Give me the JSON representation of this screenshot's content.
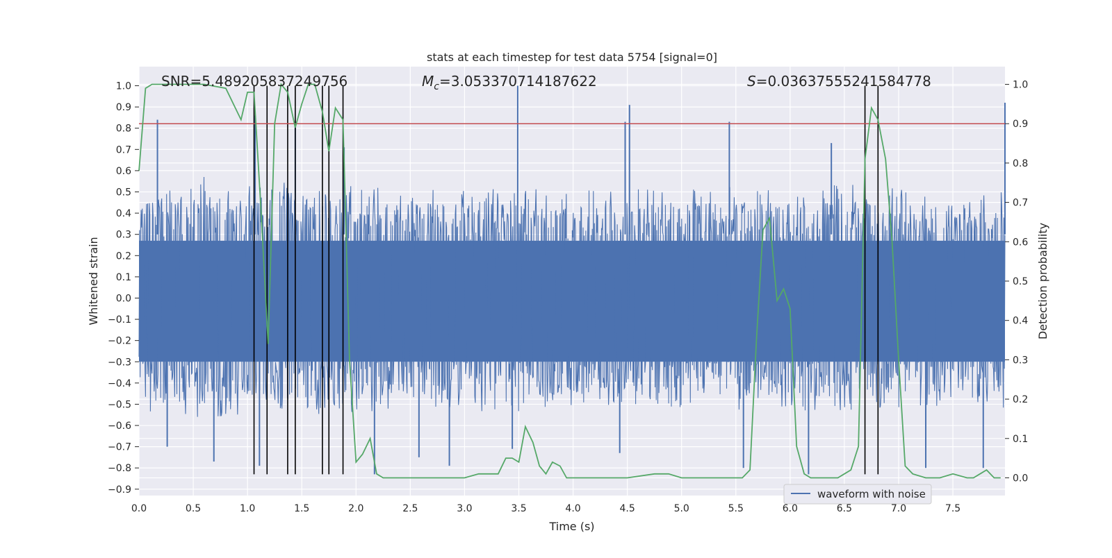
{
  "chart_data": {
    "type": "line",
    "title": "stats at each timestep for test data 5754 [signal=0]",
    "xlabel": "Time (s)",
    "ylabel_left": "Whitened strain",
    "ylabel_right": "Detection probability",
    "xlim": [
      0.0,
      7.98
    ],
    "ylim_left": [
      -0.93,
      1.09
    ],
    "ylim_right": [
      -0.045,
      1.045
    ],
    "x_ticks": [
      0.0,
      0.5,
      1.0,
      1.5,
      2.0,
      2.5,
      3.0,
      3.5,
      4.0,
      4.5,
      5.0,
      5.5,
      6.0,
      6.5,
      7.0,
      7.5
    ],
    "x_tick_labels": [
      "0.0",
      "0.5",
      "1.0",
      "1.5",
      "2.0",
      "2.5",
      "3.0",
      "3.5",
      "4.0",
      "4.5",
      "5.0",
      "5.5",
      "6.0",
      "6.5",
      "7.0",
      "7.5"
    ],
    "y_left_ticks": [
      1.0,
      0.9,
      0.8,
      0.7,
      0.6,
      0.5,
      0.4,
      0.3,
      0.2,
      0.1,
      0.0,
      -0.1,
      -0.2,
      -0.3,
      -0.4,
      -0.5,
      -0.6,
      -0.7,
      -0.8,
      -0.9
    ],
    "y_left_tick_labels": [
      "1.0",
      "0.9",
      "0.8",
      "0.7",
      "0.6",
      "0.5",
      "0.4",
      "0.3",
      "0.2",
      "0.1",
      "0.0",
      "−0.1",
      "−0.2",
      "−0.3",
      "−0.4",
      "−0.5",
      "−0.6",
      "−0.7",
      "−0.8",
      "−0.9"
    ],
    "y_right_ticks": [
      1.0,
      0.9,
      0.8,
      0.7,
      0.6,
      0.5,
      0.4,
      0.3,
      0.2,
      0.1,
      0.0
    ],
    "y_right_tick_labels": [
      "1.0",
      "0.9",
      "0.8",
      "0.7",
      "0.6",
      "0.5",
      "0.4",
      "0.3",
      "0.2",
      "0.1",
      "0.0"
    ],
    "grid": true,
    "legend": {
      "position": "lower-right",
      "entries": [
        "waveform with noise"
      ]
    },
    "annotations": {
      "snr": "SNR=5.489205837249756",
      "mc_symbol": "M",
      "mc_sub": "c",
      "mc_value": "=3.053370714187622",
      "s_symbol": "S",
      "s_value": "=0.03637555241584778"
    },
    "threshold_line": {
      "axis": "right",
      "value": 0.9
    },
    "detection_markers_x": [
      1.06,
      1.18,
      1.37,
      1.44,
      1.69,
      1.75,
      1.88,
      6.69,
      6.81
    ],
    "detection_marker_range": [
      -0.83,
      1.0
    ],
    "waveform_envelope": {
      "x": [
        0.0,
        0.5,
        1.0,
        1.5,
        2.0,
        2.5,
        3.0,
        3.5,
        4.0,
        4.5,
        5.0,
        5.5,
        6.0,
        6.5,
        7.0,
        7.5,
        7.98
      ],
      "typical_max": [
        0.45,
        0.5,
        0.48,
        0.47,
        0.46,
        0.45,
        0.44,
        0.46,
        0.44,
        0.45,
        0.44,
        0.46,
        0.44,
        0.47,
        0.45,
        0.44,
        0.44
      ],
      "typical_min": [
        -0.46,
        -0.5,
        -0.5,
        -0.49,
        -0.47,
        -0.45,
        -0.46,
        -0.47,
        -0.45,
        -0.46,
        -0.45,
        -0.46,
        -0.46,
        -0.48,
        -0.45,
        -0.45,
        -0.45
      ],
      "peaks": [
        {
          "x": 0.17,
          "y": 0.84
        },
        {
          "x": 1.07,
          "y": 0.86
        },
        {
          "x": 1.44,
          "y": 0.83
        },
        {
          "x": 1.89,
          "y": 0.71
        },
        {
          "x": 3.49,
          "y": 1.0
        },
        {
          "x": 4.52,
          "y": 0.91
        },
        {
          "x": 4.48,
          "y": 0.83
        },
        {
          "x": 5.44,
          "y": 0.83
        },
        {
          "x": 6.38,
          "y": 0.73
        },
        {
          "x": 7.98,
          "y": 0.92
        }
      ],
      "troughs": [
        {
          "x": 0.26,
          "y": -0.7
        },
        {
          "x": 0.69,
          "y": -0.77
        },
        {
          "x": 1.11,
          "y": -0.79
        },
        {
          "x": 2.17,
          "y": -0.83
        },
        {
          "x": 2.58,
          "y": -0.75
        },
        {
          "x": 2.86,
          "y": -0.79
        },
        {
          "x": 3.44,
          "y": -0.71
        },
        {
          "x": 4.43,
          "y": -0.73
        },
        {
          "x": 5.57,
          "y": -0.8
        },
        {
          "x": 6.17,
          "y": -0.83
        },
        {
          "x": 7.25,
          "y": -0.8
        },
        {
          "x": 7.78,
          "y": -0.8
        }
      ]
    },
    "series": [
      {
        "name": "waveform with noise",
        "axis": "left",
        "color": "#4c72b0",
        "description_type": "dense noisy waveform"
      },
      {
        "axis": "right",
        "color": "#55a868",
        "x": [
          0.0,
          0.06,
          0.12,
          0.2,
          0.4,
          0.6,
          0.8,
          0.94,
          1.0,
          1.06,
          1.12,
          1.19,
          1.25,
          1.31,
          1.37,
          1.44,
          1.5,
          1.56,
          1.62,
          1.69,
          1.75,
          1.81,
          1.88,
          1.94,
          2.0,
          2.06,
          2.13,
          2.19,
          2.25,
          2.5,
          2.75,
          3.0,
          3.13,
          3.19,
          3.31,
          3.38,
          3.44,
          3.5,
          3.56,
          3.63,
          3.69,
          3.75,
          3.81,
          3.88,
          3.94,
          4.0,
          4.06,
          4.25,
          4.5,
          4.75,
          4.81,
          4.88,
          5.0,
          5.25,
          5.5,
          5.56,
          5.63,
          5.69,
          5.75,
          5.81,
          5.88,
          5.94,
          6.0,
          6.06,
          6.13,
          6.19,
          6.31,
          6.44,
          6.5,
          6.56,
          6.63,
          6.69,
          6.75,
          6.81,
          6.88,
          6.94,
          7.0,
          7.06,
          7.13,
          7.25,
          7.38,
          7.5,
          7.63,
          7.69,
          7.75,
          7.81,
          7.88,
          7.94
        ],
        "y": [
          0.78,
          0.99,
          1.0,
          1.0,
          1.0,
          1.0,
          0.99,
          0.91,
          0.98,
          0.98,
          0.7,
          0.34,
          0.9,
          1.0,
          0.98,
          0.89,
          0.95,
          1.0,
          1.0,
          0.93,
          0.83,
          0.94,
          0.91,
          0.3,
          0.04,
          0.06,
          0.1,
          0.01,
          0.0,
          0.0,
          0.0,
          0.0,
          0.01,
          0.01,
          0.01,
          0.05,
          0.05,
          0.04,
          0.13,
          0.09,
          0.03,
          0.01,
          0.04,
          0.03,
          0.0,
          0.0,
          0.0,
          0.0,
          0.0,
          0.01,
          0.01,
          0.01,
          0.0,
          0.0,
          0.0,
          0.0,
          0.02,
          0.35,
          0.63,
          0.66,
          0.45,
          0.48,
          0.43,
          0.08,
          0.01,
          0.0,
          0.0,
          0.0,
          0.01,
          0.02,
          0.08,
          0.81,
          0.94,
          0.91,
          0.81,
          0.6,
          0.3,
          0.03,
          0.01,
          0.0,
          0.0,
          0.01,
          0.0,
          0.0,
          0.01,
          0.02,
          0.0,
          0.0
        ]
      }
    ],
    "colors": {
      "background": "#eaeaf2",
      "grid": "#ffffff",
      "threshold": "#c44e52",
      "markers": "#000000"
    }
  }
}
